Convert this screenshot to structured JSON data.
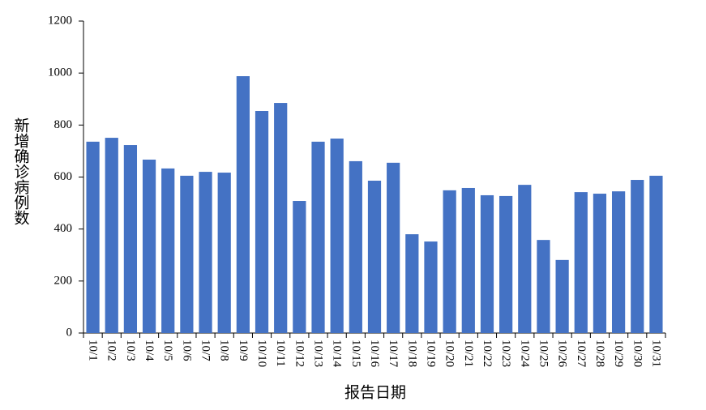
{
  "chart_data": {
    "type": "bar",
    "x_label": "报告日期",
    "y_label": "新增确诊病例数",
    "categories": [
      "10/1",
      "10/2",
      "10/3",
      "10/4",
      "10/5",
      "10/6",
      "10/7",
      "10/8",
      "10/9",
      "10/10",
      "10/11",
      "10/12",
      "10/13",
      "10/14",
      "10/15",
      "10/16",
      "10/17",
      "10/18",
      "10/19",
      "10/20",
      "10/21",
      "10/22",
      "10/23",
      "10/24",
      "10/25",
      "10/26",
      "10/27",
      "10/28",
      "10/29",
      "10/30",
      "10/31"
    ],
    "values": [
      736,
      751,
      723,
      667,
      633,
      605,
      620,
      617,
      988,
      854,
      885,
      508,
      736,
      748,
      661,
      586,
      655,
      380,
      352,
      549,
      558,
      530,
      527,
      570,
      358,
      281,
      542,
      536,
      545,
      589,
      605
    ],
    "color": "#4472c4",
    "ylim": [
      0,
      1200
    ],
    "yticks": [
      0,
      200,
      400,
      600,
      800,
      1000,
      1200
    ],
    "grid": false
  }
}
